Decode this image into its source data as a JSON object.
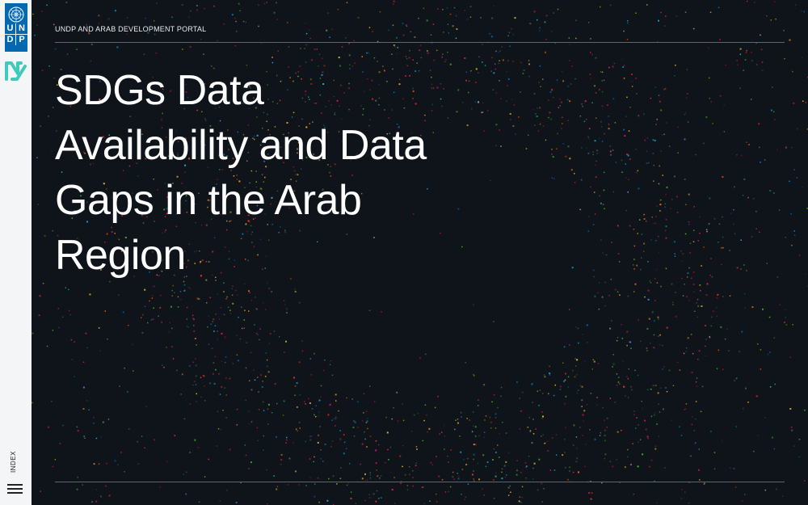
{
  "brand": {
    "logo_letters": [
      "U",
      "N",
      "D",
      "P"
    ],
    "logo_color": "#0468b1",
    "secondary_logo_color": "#3ecbbb"
  },
  "header": {
    "portal_label": "UNDP AND ARAB DEVELOPMENT PORTAL"
  },
  "hero": {
    "title": "SDGs Data Availability and Data Gaps in the Arab Region"
  },
  "sidebar": {
    "index_label": "INDEX",
    "menu_icon": "hamburger-menu-icon"
  },
  "background": {
    "color": "#0e141a",
    "dot_colors": [
      "#e5243b",
      "#dda63a",
      "#4c9f38",
      "#26bde2",
      "#fd6925",
      "#a21942",
      "#56c02b",
      "#fcc30b",
      "#19486a",
      "#3f7e44",
      "#00689d",
      "#dd1367",
      "#ff3a21",
      "#bf8b2e",
      "#0a97d9",
      "#c5192d"
    ]
  }
}
